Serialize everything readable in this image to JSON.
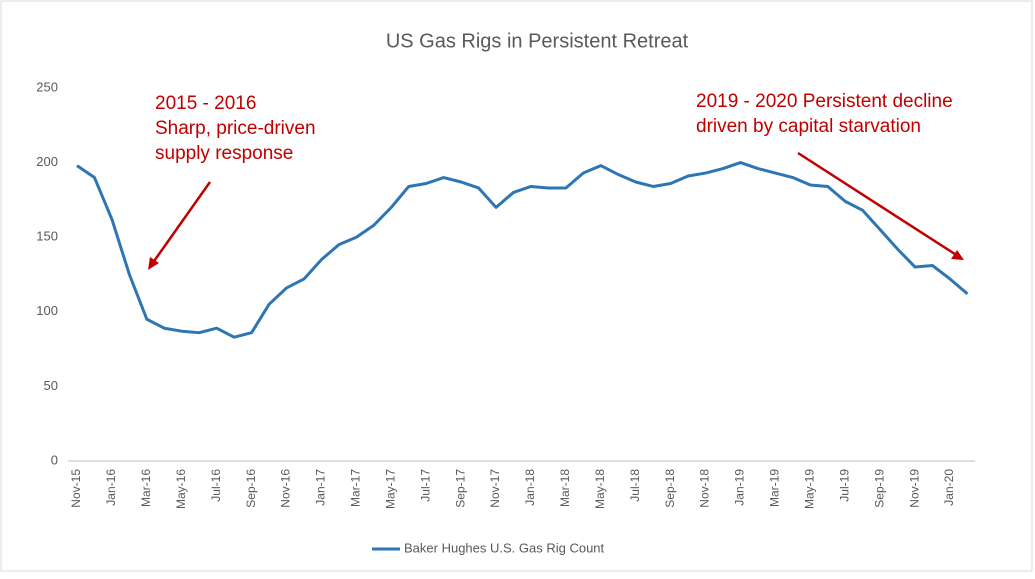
{
  "chart_data": {
    "type": "line",
    "title": "US Gas Rigs in Persistent Retreat",
    "categories": [
      "Nov-15",
      null,
      "Jan-16",
      null,
      "Mar-16",
      null,
      "May-16",
      null,
      "Jul-16",
      null,
      "Sep-16",
      null,
      "Nov-16",
      null,
      "Jan-17",
      null,
      "Mar-17",
      null,
      "May-17",
      null,
      "Jul-17",
      null,
      "Sep-17",
      null,
      "Nov-17",
      null,
      "Jan-18",
      null,
      "Mar-18",
      null,
      "May-18",
      null,
      "Jul-18",
      null,
      "Sep-18",
      null,
      "Nov-18",
      null,
      "Jan-19",
      null,
      "Mar-19",
      null,
      "May-19",
      null,
      "Jul-19",
      null,
      "Sep-19",
      null,
      "Nov-19",
      null,
      "Jan-20",
      null
    ],
    "series": [
      {
        "name": "Baker Hughes U.S. Gas Rig Count",
        "color": "#2e75b6",
        "values": [
          198,
          190,
          162,
          125,
          95,
          89,
          87,
          86,
          89,
          83,
          86,
          105,
          116,
          122,
          135,
          145,
          150,
          158,
          170,
          184,
          186,
          190,
          187,
          183,
          170,
          180,
          184,
          183,
          183,
          193,
          198,
          192,
          187,
          184,
          186,
          191,
          193,
          196,
          200,
          196,
          193,
          190,
          185,
          184,
          174,
          168,
          155,
          142,
          130,
          131,
          122,
          112
        ]
      }
    ],
    "ylim": [
      0,
      250
    ],
    "yticks": [
      0,
      50,
      100,
      150,
      200,
      250
    ],
    "grid": false,
    "legend": "bottom",
    "annotations": [
      {
        "lines": [
          "2015 - 2016",
          "Sharp, price-driven",
          "supply response"
        ],
        "color": "#c00000"
      },
      {
        "lines": [
          "2019 - 2020 Persistent  decline",
          "driven by capital starvation"
        ],
        "color": "#c00000"
      }
    ]
  }
}
